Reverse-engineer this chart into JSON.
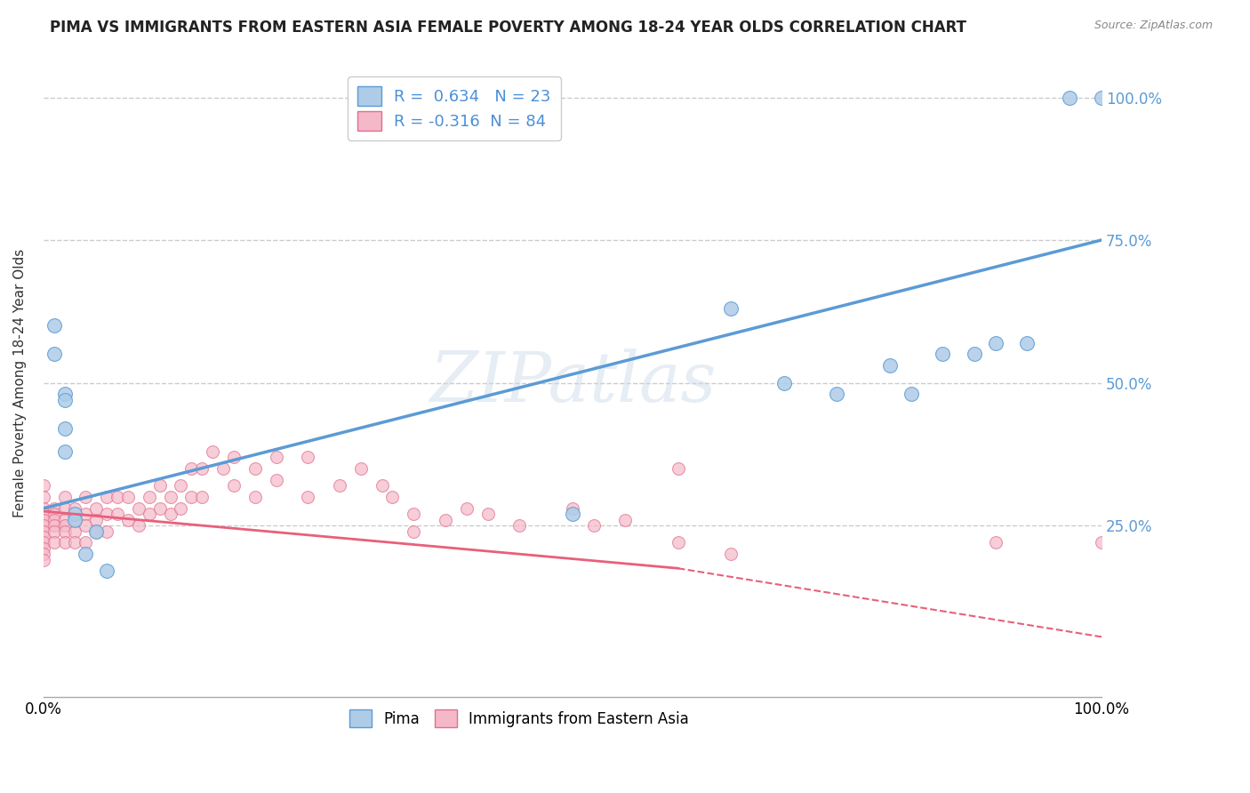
{
  "title": "PIMA VS IMMIGRANTS FROM EASTERN ASIA FEMALE POVERTY AMONG 18-24 YEAR OLDS CORRELATION CHART",
  "source": "Source: ZipAtlas.com",
  "ylabel": "Female Poverty Among 18-24 Year Olds",
  "watermark": "ZIPatlas",
  "blue_label": "Pima",
  "pink_label": "Immigrants from Eastern Asia",
  "blue_R": 0.634,
  "blue_N": 23,
  "pink_R": -0.316,
  "pink_N": 84,
  "blue_color": "#aecce8",
  "pink_color": "#f5b8c8",
  "blue_line_color": "#5b9bd5",
  "pink_line_color": "#e8607a",
  "blue_scatter": [
    [
      0.01,
      0.6
    ],
    [
      0.01,
      0.55
    ],
    [
      0.02,
      0.48
    ],
    [
      0.02,
      0.47
    ],
    [
      0.02,
      0.42
    ],
    [
      0.02,
      0.38
    ],
    [
      0.03,
      0.27
    ],
    [
      0.03,
      0.26
    ],
    [
      0.04,
      0.2
    ],
    [
      0.05,
      0.24
    ],
    [
      0.06,
      0.17
    ],
    [
      0.5,
      0.27
    ],
    [
      0.65,
      0.63
    ],
    [
      0.7,
      0.5
    ],
    [
      0.75,
      0.48
    ],
    [
      0.8,
      0.53
    ],
    [
      0.82,
      0.48
    ],
    [
      0.85,
      0.55
    ],
    [
      0.88,
      0.55
    ],
    [
      0.9,
      0.57
    ],
    [
      0.93,
      0.57
    ],
    [
      0.97,
      1.0
    ],
    [
      1.0,
      1.0
    ]
  ],
  "pink_scatter": [
    [
      0.0,
      0.32
    ],
    [
      0.0,
      0.3
    ],
    [
      0.0,
      0.28
    ],
    [
      0.0,
      0.27
    ],
    [
      0.0,
      0.26
    ],
    [
      0.0,
      0.25
    ],
    [
      0.0,
      0.24
    ],
    [
      0.0,
      0.23
    ],
    [
      0.0,
      0.22
    ],
    [
      0.0,
      0.21
    ],
    [
      0.0,
      0.2
    ],
    [
      0.0,
      0.19
    ],
    [
      0.01,
      0.28
    ],
    [
      0.01,
      0.27
    ],
    [
      0.01,
      0.26
    ],
    [
      0.01,
      0.25
    ],
    [
      0.01,
      0.24
    ],
    [
      0.01,
      0.22
    ],
    [
      0.02,
      0.3
    ],
    [
      0.02,
      0.28
    ],
    [
      0.02,
      0.26
    ],
    [
      0.02,
      0.25
    ],
    [
      0.02,
      0.24
    ],
    [
      0.02,
      0.22
    ],
    [
      0.03,
      0.28
    ],
    [
      0.03,
      0.26
    ],
    [
      0.03,
      0.24
    ],
    [
      0.03,
      0.22
    ],
    [
      0.04,
      0.3
    ],
    [
      0.04,
      0.27
    ],
    [
      0.04,
      0.25
    ],
    [
      0.04,
      0.22
    ],
    [
      0.05,
      0.28
    ],
    [
      0.05,
      0.26
    ],
    [
      0.05,
      0.24
    ],
    [
      0.06,
      0.3
    ],
    [
      0.06,
      0.27
    ],
    [
      0.06,
      0.24
    ],
    [
      0.07,
      0.3
    ],
    [
      0.07,
      0.27
    ],
    [
      0.08,
      0.3
    ],
    [
      0.08,
      0.26
    ],
    [
      0.09,
      0.28
    ],
    [
      0.09,
      0.25
    ],
    [
      0.1,
      0.3
    ],
    [
      0.1,
      0.27
    ],
    [
      0.11,
      0.32
    ],
    [
      0.11,
      0.28
    ],
    [
      0.12,
      0.3
    ],
    [
      0.12,
      0.27
    ],
    [
      0.13,
      0.32
    ],
    [
      0.13,
      0.28
    ],
    [
      0.14,
      0.35
    ],
    [
      0.14,
      0.3
    ],
    [
      0.15,
      0.35
    ],
    [
      0.15,
      0.3
    ],
    [
      0.16,
      0.38
    ],
    [
      0.17,
      0.35
    ],
    [
      0.18,
      0.37
    ],
    [
      0.18,
      0.32
    ],
    [
      0.2,
      0.35
    ],
    [
      0.2,
      0.3
    ],
    [
      0.22,
      0.37
    ],
    [
      0.22,
      0.33
    ],
    [
      0.25,
      0.37
    ],
    [
      0.25,
      0.3
    ],
    [
      0.28,
      0.32
    ],
    [
      0.3,
      0.35
    ],
    [
      0.32,
      0.32
    ],
    [
      0.33,
      0.3
    ],
    [
      0.35,
      0.27
    ],
    [
      0.35,
      0.24
    ],
    [
      0.38,
      0.26
    ],
    [
      0.4,
      0.28
    ],
    [
      0.42,
      0.27
    ],
    [
      0.45,
      0.25
    ],
    [
      0.5,
      0.28
    ],
    [
      0.52,
      0.25
    ],
    [
      0.55,
      0.26
    ],
    [
      0.6,
      0.35
    ],
    [
      0.6,
      0.22
    ],
    [
      0.65,
      0.2
    ],
    [
      0.9,
      0.22
    ],
    [
      1.0,
      0.22
    ]
  ],
  "xlim": [
    0.0,
    1.0
  ],
  "ylim": [
    -0.05,
    1.05
  ],
  "ytick_vals": [
    0.0,
    0.25,
    0.5,
    0.75,
    1.0
  ],
  "ytick_labels": [
    "",
    "25.0%",
    "50.0%",
    "75.0%",
    "100.0%"
  ],
  "xtick_vals": [
    0.0,
    1.0
  ],
  "xtick_labels": [
    "0.0%",
    "100.0%"
  ],
  "grid_color": "#cccccc",
  "bg_color": "#ffffff",
  "title_fontsize": 12,
  "label_fontsize": 11,
  "tick_fontsize": 12
}
